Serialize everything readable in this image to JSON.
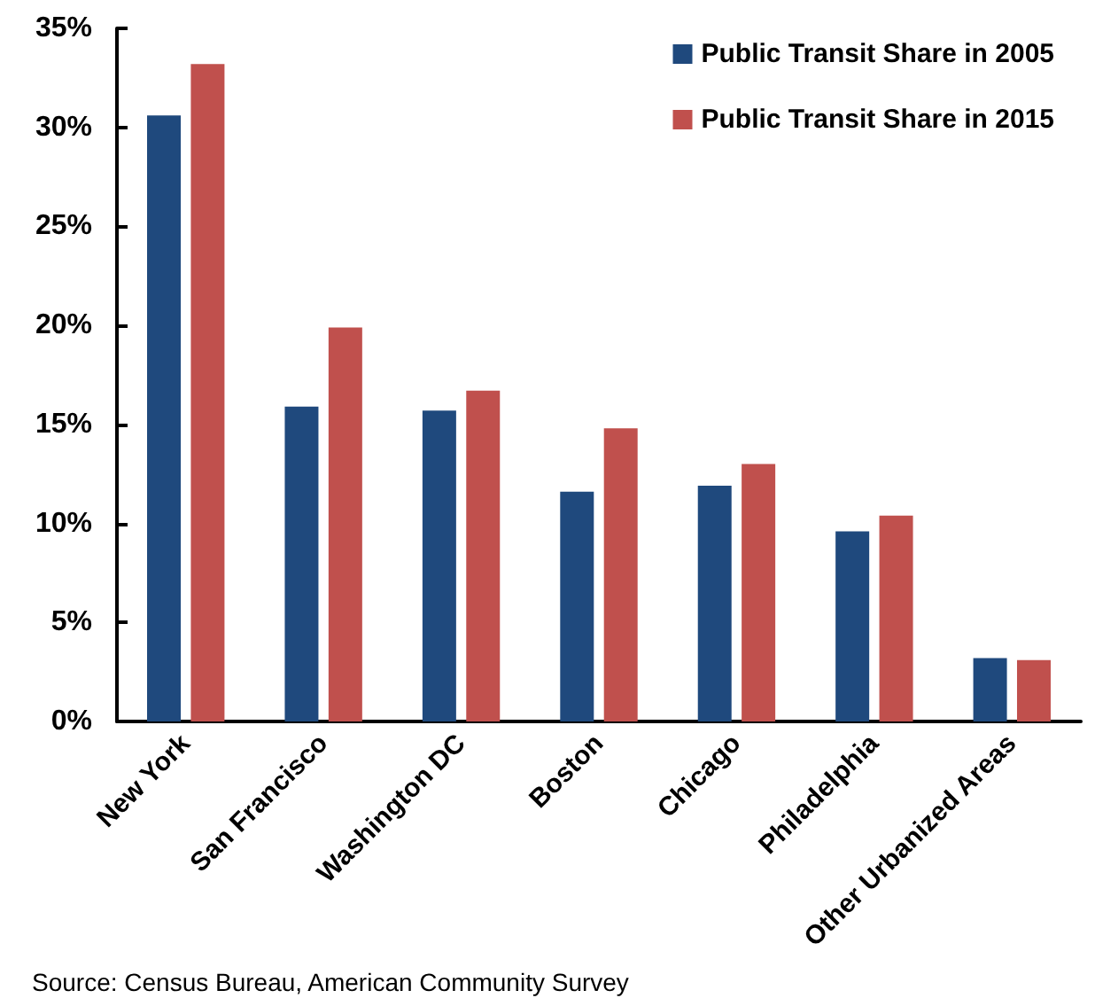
{
  "chart_data": {
    "type": "bar",
    "categories": [
      "New York",
      "San Francisco",
      "Washington DC",
      "Boston",
      "Chicago",
      "Philadelphia",
      "Other Urbanized Areas"
    ],
    "series": [
      {
        "name": "Public Transit Share in 2005",
        "color": "#1f497d",
        "values": [
          30.6,
          15.9,
          15.7,
          11.6,
          11.9,
          9.6,
          3.2
        ]
      },
      {
        "name": "Public Transit Share in 2015",
        "color": "#c0504d",
        "values": [
          33.2,
          19.9,
          16.7,
          14.8,
          13.0,
          10.4,
          3.1
        ]
      }
    ],
    "ylim": [
      0,
      35
    ],
    "yticks": [
      {
        "value": 0,
        "label": "0%"
      },
      {
        "value": 5,
        "label": "5%"
      },
      {
        "value": 10,
        "label": "10%"
      },
      {
        "value": 15,
        "label": "15%"
      },
      {
        "value": 20,
        "label": "20%"
      },
      {
        "value": 25,
        "label": "25%"
      },
      {
        "value": 30,
        "label": "30%"
      },
      {
        "value": 35,
        "label": "35%"
      }
    ],
    "grid": false,
    "legend": "top right",
    "annotations": [
      "Source: Census Bureau, American Community Survey"
    ]
  }
}
